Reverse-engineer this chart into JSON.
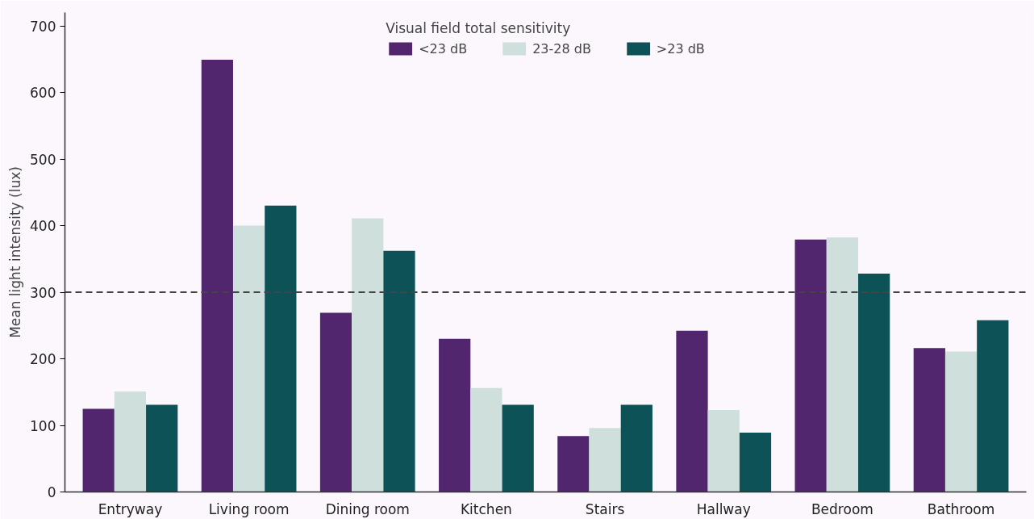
{
  "chart_data": {
    "type": "bar",
    "ylabel": "Mean light intensity (lux)",
    "legend_title": "Visual field total sensitivity",
    "categories": [
      "Entryway",
      "Living room",
      "Dining room",
      "Kitchen",
      "Stairs",
      "Hallway",
      "Bedroom",
      "Bathroom"
    ],
    "series": [
      {
        "name": "<23 dB",
        "color": "#52266f",
        "values": [
          125,
          649,
          269,
          230,
          84,
          242,
          379,
          216
        ]
      },
      {
        "name": "23-28 dB",
        "color": "#cfe0dc",
        "values": [
          151,
          400,
          411,
          156,
          96,
          123,
          382,
          211
        ]
      },
      {
        "name": ">23 dB",
        "color": "#0d5257",
        "values": [
          131,
          430,
          362,
          131,
          131,
          89,
          328,
          258
        ]
      }
    ],
    "ylim": [
      0,
      720
    ],
    "yticks": [
      0,
      100,
      200,
      300,
      400,
      500,
      600,
      700
    ],
    "ref_lines": [
      {
        "axis": "y",
        "value": 300,
        "line_style": "dashed",
        "color": "#444444"
      }
    ],
    "grid": false,
    "legend": "top"
  }
}
